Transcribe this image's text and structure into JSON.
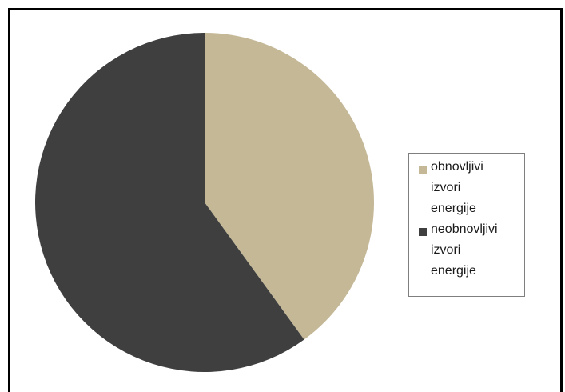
{
  "chart_data": {
    "type": "pie",
    "slices": [
      {
        "label": "obnovljivi\nizvori\nenergije",
        "value": 40,
        "color": "#c4b897"
      },
      {
        "label": "neobnovljivi\nizvori\nenergije",
        "value": 60,
        "color": "#3f3f3f"
      }
    ],
    "start_angle_deg": 0,
    "direction": "clockwise",
    "legend_placement": "right"
  }
}
